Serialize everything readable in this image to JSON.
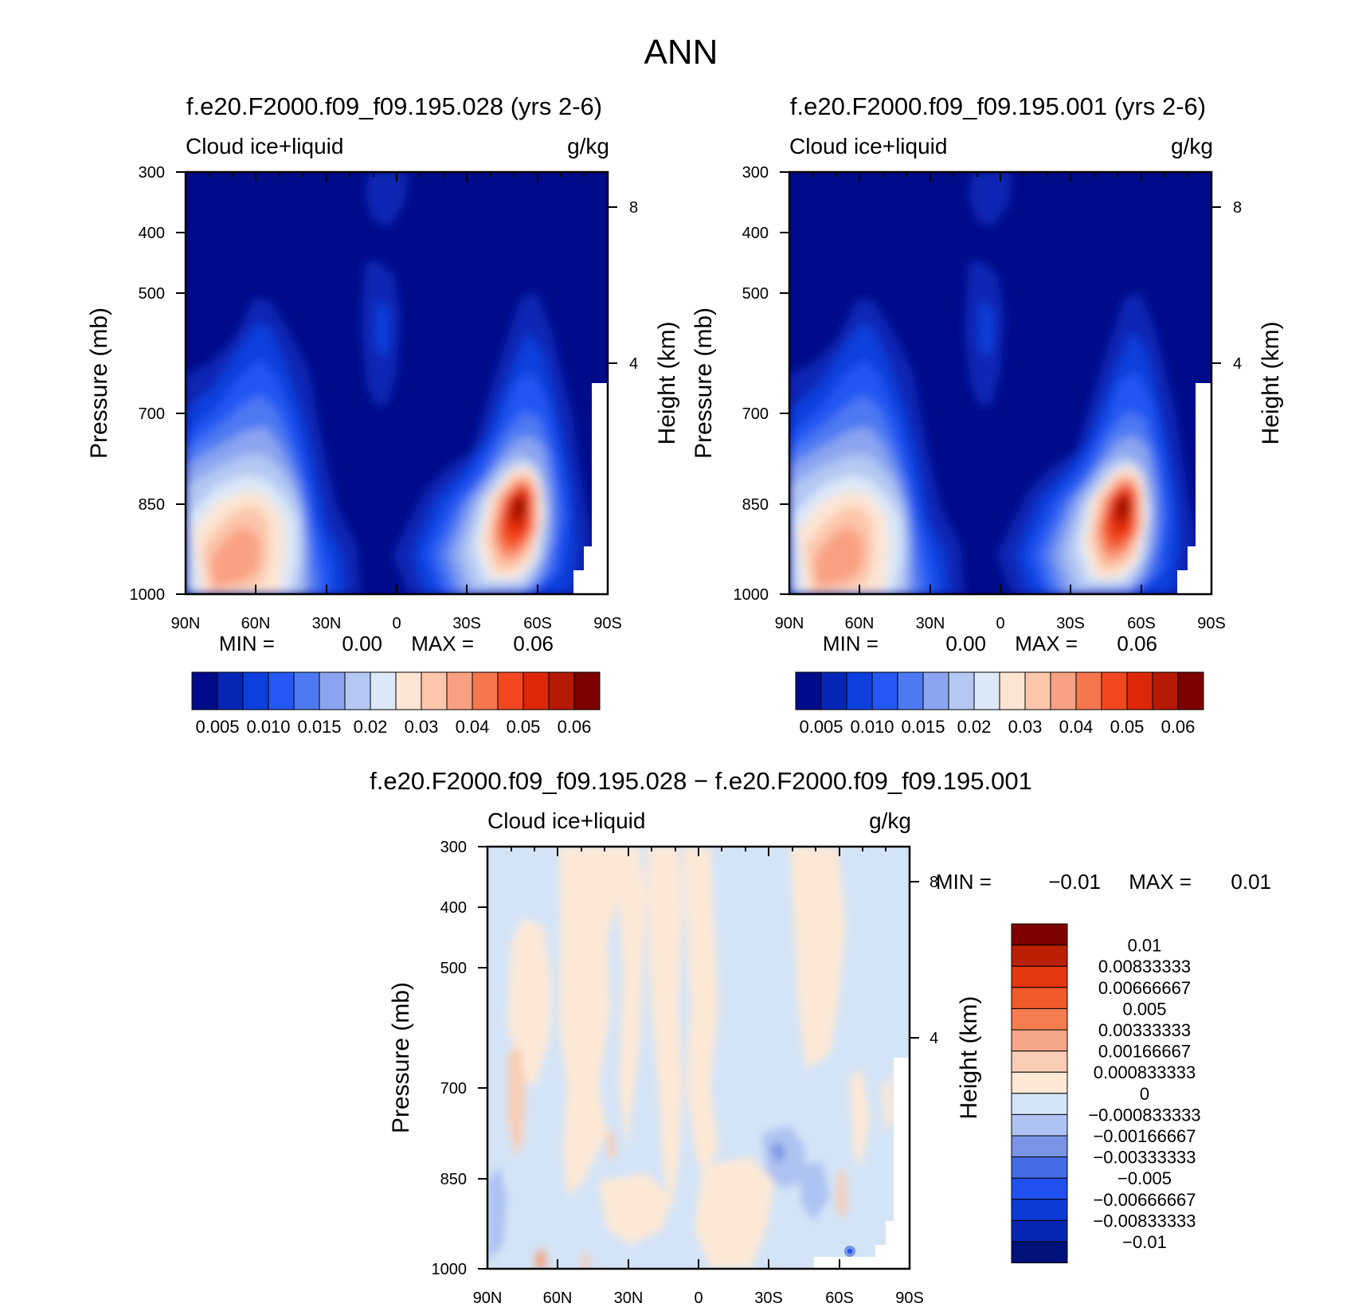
{
  "figure_title": "ANN",
  "colors": {
    "abs_palette": [
      "#000b8a",
      "#0726b5",
      "#0c3fdd",
      "#2457f3",
      "#4d79f2",
      "#8aa4f0",
      "#b4c8f3",
      "#dbe8f8",
      "#fde5d3",
      "#fcc6ab",
      "#faa082",
      "#f6764d",
      "#f3471f",
      "#dd2708",
      "#b51a04",
      "#7d0101"
    ],
    "diff_palette": [
      "#00117c",
      "#0626b3",
      "#0b3ad5",
      "#2050ef",
      "#456de8",
      "#7994e4",
      "#aec3f1",
      "#d3e4f7",
      "#fde8d6",
      "#f8cdb4",
      "#f3a688",
      "#f57c4e",
      "#f15a2a",
      "#e53710",
      "#bb2004",
      "#7f0000"
    ],
    "mask": "#ffffff"
  },
  "chart_data": [
    {
      "type": "heatmap",
      "panel": "top-left",
      "title": "f.e20.F2000.f09_f09.195.028 (yrs 2-6)",
      "left_label": "Cloud ice+liquid",
      "right_label": "g/kg",
      "ylabel": "Pressure (mb)",
      "ylabel_right": "Height (km)",
      "x_ticks": [
        "90N",
        "60N",
        "30N",
        "0",
        "30S",
        "60S",
        "90S"
      ],
      "y_ticks": [
        "300",
        "400",
        "500",
        "700",
        "850",
        "1000"
      ],
      "y_ticks_right": [
        "8",
        "4"
      ],
      "stats": {
        "min_label": "MIN =",
        "min": "0.00",
        "max_label": "MAX =",
        "max": "0.06"
      },
      "colorbar_labels": [
        "0.005",
        "0.010",
        "0.015",
        "0.02",
        "0.03",
        "0.04",
        "0.05",
        "0.06"
      ],
      "levels": [
        0.005,
        0.0075,
        0.01,
        0.0125,
        0.015,
        0.0175,
        0.02,
        0.025,
        0.03,
        0.035,
        0.04,
        0.045,
        0.05,
        0.055,
        0.06
      ],
      "features": [
        {
          "lat": 62,
          "p": 860,
          "value": 0.033
        },
        {
          "lat": 75,
          "p": 920,
          "value": 0.036
        },
        {
          "lat": -52,
          "p": 850,
          "value": 0.062
        }
      ]
    },
    {
      "type": "heatmap",
      "panel": "top-right",
      "title": "f.e20.F2000.f09_f09.195.001 (yrs 2-6)",
      "left_label": "Cloud ice+liquid",
      "right_label": "g/kg",
      "ylabel": "Pressure (mb)",
      "ylabel_right": "Height (km)",
      "x_ticks": [
        "90N",
        "60N",
        "30N",
        "0",
        "30S",
        "60S",
        "90S"
      ],
      "y_ticks": [
        "300",
        "400",
        "500",
        "700",
        "850",
        "1000"
      ],
      "y_ticks_right": [
        "8",
        "4"
      ],
      "stats": {
        "min_label": "MIN =",
        "min": "0.00",
        "max_label": "MAX =",
        "max": "0.06"
      },
      "colorbar_labels": [
        "0.005",
        "0.010",
        "0.015",
        "0.02",
        "0.03",
        "0.04",
        "0.05",
        "0.06"
      ],
      "levels": [
        0.005,
        0.0075,
        0.01,
        0.0125,
        0.015,
        0.0175,
        0.02,
        0.025,
        0.03,
        0.035,
        0.04,
        0.045,
        0.05,
        0.055,
        0.06
      ],
      "features": [
        {
          "lat": 62,
          "p": 860,
          "value": 0.034
        },
        {
          "lat": 75,
          "p": 920,
          "value": 0.036
        },
        {
          "lat": -52,
          "p": 850,
          "value": 0.063
        }
      ]
    },
    {
      "type": "heatmap",
      "panel": "bottom",
      "title": "f.e20.F2000.f09_f09.195.028 − f.e20.F2000.f09_f09.195.001",
      "left_label": "Cloud ice+liquid",
      "right_label": "g/kg",
      "ylabel": "Pressure (mb)",
      "ylabel_right": "Height (km)",
      "x_ticks": [
        "90N",
        "60N",
        "30N",
        "0",
        "30S",
        "60S",
        "90S"
      ],
      "y_ticks": [
        "300",
        "400",
        "500",
        "700",
        "850",
        "1000"
      ],
      "y_ticks_right": [
        "8",
        "4"
      ],
      "stats": {
        "min_label": "MIN =",
        "min": "−0.01",
        "max_label": "MAX =",
        "max": "0.01"
      },
      "colorbar_labels": [
        "0.01",
        "0.00833333",
        "0.00666667",
        "0.005",
        "0.00333333",
        "0.00166667",
        "0.000833333",
        "0",
        "−0.000833333",
        "−0.00166667",
        "−0.00333333",
        "−0.005",
        "−0.00666667",
        "−0.00833333",
        "−0.01"
      ],
      "levels": [
        -0.01,
        -0.00833333,
        -0.00666667,
        -0.005,
        -0.00333333,
        -0.00166667,
        -0.000833333,
        0,
        0.000833333,
        0.00166667,
        0.00333333,
        0.005,
        0.00666667,
        0.00833333,
        0.01
      ]
    }
  ]
}
